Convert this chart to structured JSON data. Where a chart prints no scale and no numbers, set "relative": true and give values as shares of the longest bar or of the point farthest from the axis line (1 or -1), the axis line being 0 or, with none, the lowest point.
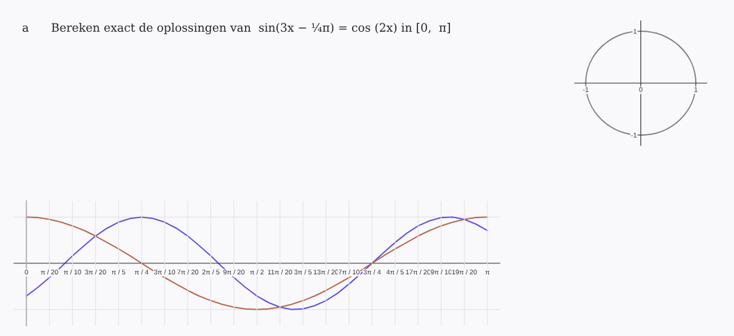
{
  "chart_data": [
    {
      "type": "line",
      "title": "a      Bereken exact de oplossingen van  sin(3x − ¼π) = cos (2x) in [0,  π]",
      "relative": true,
      "grid": true,
      "x": [
        0,
        0.079,
        0.157,
        0.236,
        0.314,
        0.393,
        0.471,
        0.55,
        0.628,
        0.707,
        0.785,
        0.864,
        0.942,
        1.021,
        1.1,
        1.178,
        1.257,
        1.335,
        1.414,
        1.492,
        1.571,
        1.649,
        1.728,
        1.806,
        1.885,
        1.963,
        2.042,
        2.121,
        2.199,
        2.278,
        2.356,
        2.435,
        2.513,
        2.592,
        2.67,
        2.749,
        2.827,
        2.906,
        2.985,
        3.063,
        3.142
      ],
      "xlim": [
        -0.085,
        3.227
      ],
      "xticks": [
        0,
        {
          "value": 0.157,
          "label": "π / 20"
        },
        {
          "value": 0.314,
          "label": "π / 10"
        },
        {
          "value": 0.471,
          "label": "3π / 20"
        },
        {
          "value": 0.628,
          "label": "π / 5"
        },
        {
          "value": 0.785,
          "label": "π / 4"
        },
        {
          "value": 0.942,
          "label": "3π / 10"
        },
        {
          "value": 1.1,
          "label": "7π / 20"
        },
        {
          "value": 1.257,
          "label": "2π / 5"
        },
        {
          "value": 1.414,
          "label": "9π / 20"
        },
        {
          "value": 1.571,
          "label": "π / 2"
        },
        {
          "value": 1.728,
          "label": "11π / 20"
        },
        {
          "value": 1.885,
          "label": "3π / 5"
        },
        {
          "value": 2.042,
          "label": "13π / 20"
        },
        {
          "value": 2.199,
          "label": "7π / 10"
        },
        {
          "value": 2.356,
          "label": "3π / 4"
        },
        {
          "value": 2.513,
          "label": "4π / 5"
        },
        {
          "value": 2.67,
          "label": "17π / 20"
        },
        {
          "value": 2.827,
          "label": "9π / 10"
        },
        {
          "value": 2.985,
          "label": "19π / 20"
        },
        {
          "value": 3.142,
          "label": "π"
        }
      ],
      "series": [
        {
          "color": "#5a4ee0",
          "values": [
            -0.71,
            -0.52,
            -0.31,
            -0.08,
            0.16,
            0.38,
            0.59,
            0.76,
            0.89,
            0.97,
            1,
            0.97,
            0.89,
            0.76,
            0.59,
            0.38,
            0.16,
            -0.08,
            -0.31,
            -0.52,
            -0.71,
            -0.85,
            -0.95,
            -1,
            -0.99,
            -0.92,
            -0.81,
            -0.65,
            -0.45,
            -0.23,
            0,
            0.23,
            0.45,
            0.65,
            0.81,
            0.92,
            0.99,
            1,
            0.95,
            0.85,
            0.71
          ]
        },
        {
          "color": "#b3654c",
          "values": [
            1,
            0.99,
            0.95,
            0.89,
            0.81,
            0.71,
            0.59,
            0.45,
            0.31,
            0.16,
            0,
            -0.16,
            -0.31,
            -0.45,
            -0.59,
            -0.71,
            -0.81,
            -0.89,
            -0.95,
            -0.99,
            -1,
            -0.99,
            -0.95,
            -0.89,
            -0.81,
            -0.71,
            -0.59,
            -0.45,
            -0.31,
            -0.16,
            0,
            0.16,
            0.31,
            0.45,
            0.59,
            0.71,
            0.81,
            0.89,
            0.95,
            0.99,
            1
          ]
        }
      ]
    },
    {
      "type": "line",
      "xlim": [
        -1.2,
        1.2
      ],
      "ylim": [
        -1.2,
        1.2
      ],
      "xticks": [
        -1,
        0,
        1
      ],
      "yticks": [
        -1,
        1
      ]
    }
  ]
}
